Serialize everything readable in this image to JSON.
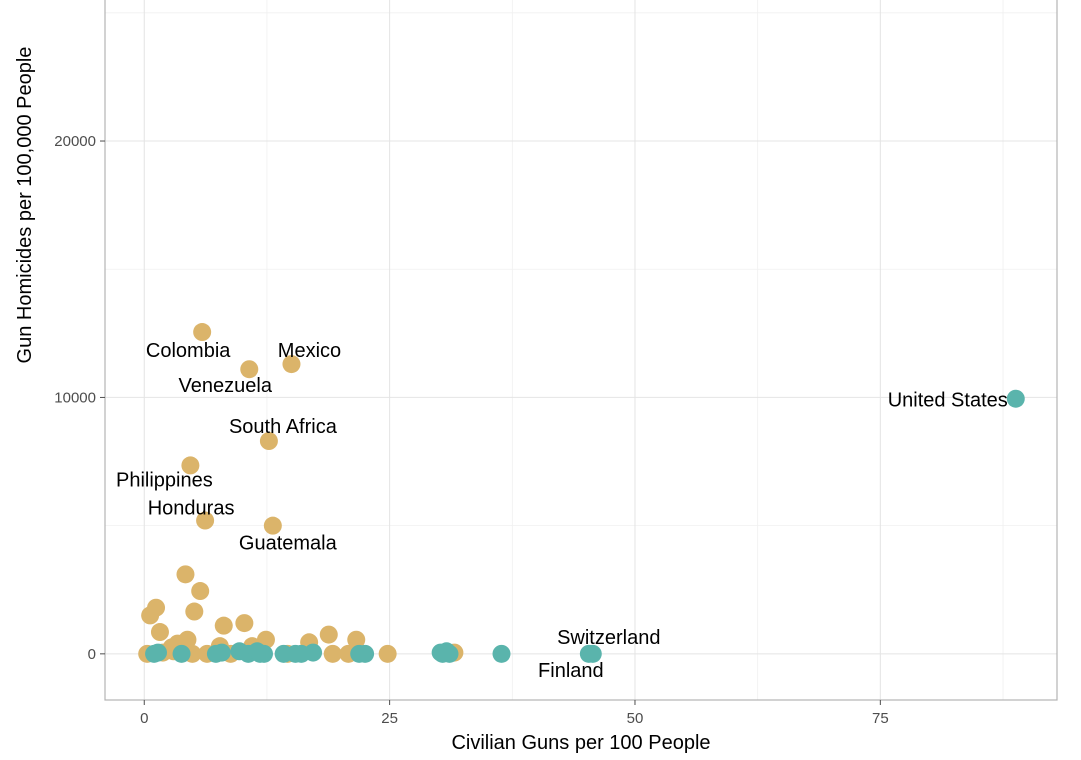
{
  "chart_data": {
    "type": "scatter",
    "title": "",
    "xlabel": "Civilian Guns per 100 People",
    "ylabel": "Gun Homicides per 100,000 People",
    "xlim": [
      -4,
      93
    ],
    "ylim": [
      -1800,
      25500
    ],
    "x_ticks": [
      0,
      25,
      50,
      75
    ],
    "y_ticks": [
      0,
      10000,
      20000
    ],
    "x_tick_labels": [
      "0",
      "25",
      "50",
      "75"
    ],
    "y_tick_labels": [
      "0",
      "10000",
      "20000"
    ],
    "grid": true,
    "legend": "none",
    "colors": {
      "group_a": "#dbb46a",
      "group_b": "#5ab4ac"
    },
    "series": [
      {
        "group": "group_a",
        "points": [
          {
            "x": 5.9,
            "y": 12550,
            "label": "Colombia"
          },
          {
            "x": 10.7,
            "y": 11100,
            "label": "Venezuela"
          },
          {
            "x": 15.0,
            "y": 11300,
            "label": "Mexico"
          },
          {
            "x": 12.7,
            "y": 8300,
            "label": "South Africa"
          },
          {
            "x": 4.7,
            "y": 7350,
            "label": "Philippines"
          },
          {
            "x": 6.2,
            "y": 5200,
            "label": "Honduras"
          },
          {
            "x": 13.1,
            "y": 5000,
            "label": "Guatemala"
          },
          {
            "x": 4.2,
            "y": 3100
          },
          {
            "x": 5.7,
            "y": 2450
          },
          {
            "x": 1.2,
            "y": 1800
          },
          {
            "x": 0.6,
            "y": 1500
          },
          {
            "x": 5.1,
            "y": 1650
          },
          {
            "x": 8.1,
            "y": 1100
          },
          {
            "x": 10.2,
            "y": 1200
          },
          {
            "x": 1.6,
            "y": 850
          },
          {
            "x": 12.4,
            "y": 550
          },
          {
            "x": 18.8,
            "y": 750
          },
          {
            "x": 21.6,
            "y": 550
          },
          {
            "x": 16.8,
            "y": 450
          },
          {
            "x": 4.4,
            "y": 550
          },
          {
            "x": 3.4,
            "y": 400
          },
          {
            "x": 2.8,
            "y": 250
          },
          {
            "x": 7.7,
            "y": 300
          },
          {
            "x": 11.0,
            "y": 300
          },
          {
            "x": 0.3,
            "y": 0
          },
          {
            "x": 1.9,
            "y": 50
          },
          {
            "x": 3.0,
            "y": 100
          },
          {
            "x": 4.9,
            "y": 0
          },
          {
            "x": 6.4,
            "y": 0
          },
          {
            "x": 8.8,
            "y": 0
          },
          {
            "x": 14.6,
            "y": 0
          },
          {
            "x": 19.2,
            "y": 0
          },
          {
            "x": 20.8,
            "y": 0
          },
          {
            "x": 24.8,
            "y": 0
          },
          {
            "x": 31.6,
            "y": 50
          }
        ]
      },
      {
        "group": "group_b",
        "points": [
          {
            "x": 88.8,
            "y": 9950,
            "label": "United States"
          },
          {
            "x": 45.7,
            "y": 0,
            "label": "Switzerland"
          },
          {
            "x": 45.3,
            "y": 0,
            "label": "Finland"
          },
          {
            "x": 1.0,
            "y": 0
          },
          {
            "x": 1.4,
            "y": 50
          },
          {
            "x": 3.8,
            "y": 0
          },
          {
            "x": 7.3,
            "y": 0
          },
          {
            "x": 7.9,
            "y": 50
          },
          {
            "x": 9.7,
            "y": 100
          },
          {
            "x": 10.6,
            "y": 0
          },
          {
            "x": 11.5,
            "y": 100
          },
          {
            "x": 11.8,
            "y": 0
          },
          {
            "x": 12.2,
            "y": 0
          },
          {
            "x": 14.2,
            "y": 0
          },
          {
            "x": 15.4,
            "y": 0
          },
          {
            "x": 16.0,
            "y": 0
          },
          {
            "x": 17.2,
            "y": 50
          },
          {
            "x": 21.9,
            "y": 0
          },
          {
            "x": 22.5,
            "y": 0
          },
          {
            "x": 30.2,
            "y": 50
          },
          {
            "x": 30.4,
            "y": 0
          },
          {
            "x": 30.8,
            "y": 100
          },
          {
            "x": 31.1,
            "y": 0
          },
          {
            "x": 36.4,
            "y": 0
          }
        ]
      }
    ]
  }
}
